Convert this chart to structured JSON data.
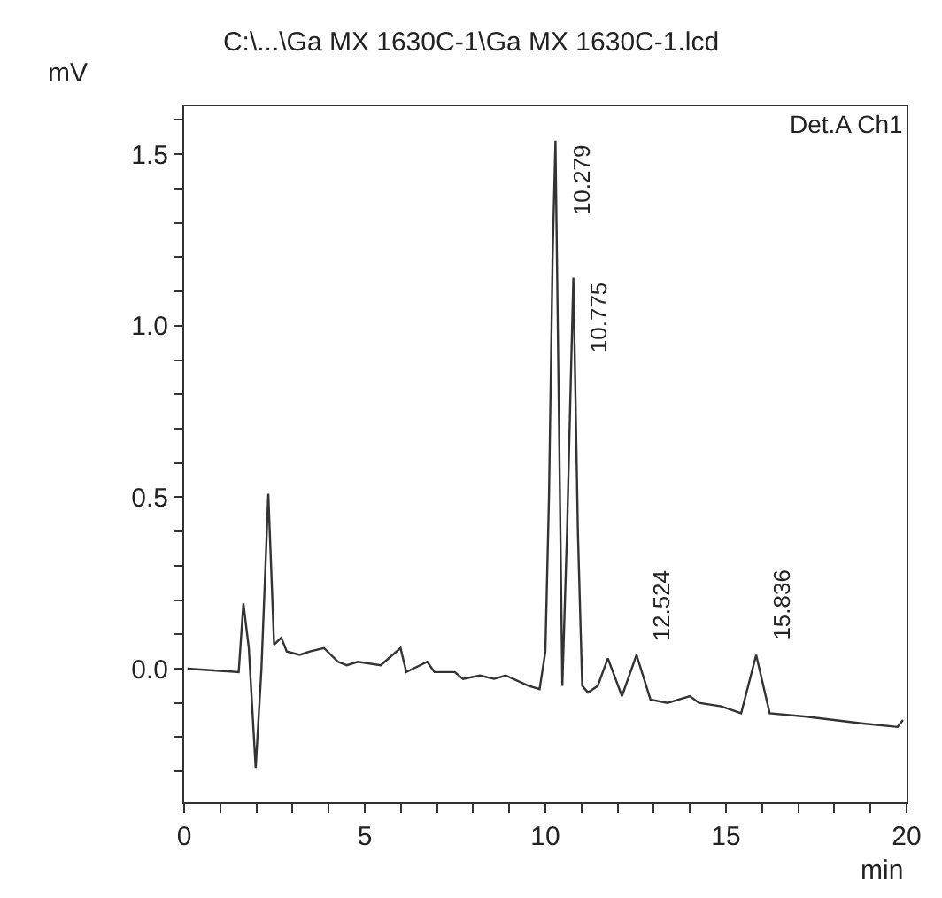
{
  "chart_data": {
    "type": "line",
    "title": "C:\\...\\Ga MX 1630C-1\\Ga MX 1630C-1.lcd",
    "xlabel": "min",
    "ylabel": "mV",
    "annotations": [
      "Det.A Ch1",
      {
        "text": "10.279",
        "x": 10.279,
        "y": 1.54
      },
      {
        "text": "10.775",
        "x": 10.775,
        "y": 1.14
      },
      {
        "text": "12.524",
        "x": 12.524,
        "y": 0.04
      },
      {
        "text": "15.836",
        "x": 15.836,
        "y": 0.04
      }
    ],
    "series": [
      {
        "color": "#333333",
        "x": [
          0.09,
          1.51,
          1.64,
          1.79,
          1.98,
          2.14,
          2.33,
          2.49,
          2.69,
          2.84,
          3.2,
          3.48,
          3.87,
          4.26,
          4.5,
          4.81,
          5.44,
          5.99,
          6.15,
          6.73,
          6.93,
          7.49,
          7.72,
          8.19,
          8.58,
          8.9,
          9.53,
          9.84,
          10.0,
          10.1,
          10.2,
          10.279,
          10.38,
          10.47,
          10.6,
          10.775,
          10.9,
          11.02,
          11.18,
          11.45,
          11.73,
          12.12,
          12.524,
          12.91,
          13.38,
          14.0,
          14.25,
          14.87,
          15.42,
          15.836,
          16.21,
          17.23,
          18.8,
          19.75,
          19.9
        ],
        "values": [
          0.0,
          -0.01,
          0.19,
          0.06,
          -0.29,
          0.0,
          0.51,
          0.07,
          0.09,
          0.05,
          0.04,
          0.05,
          0.06,
          0.02,
          0.01,
          0.02,
          0.01,
          0.06,
          -0.01,
          0.02,
          -0.01,
          -0.01,
          -0.03,
          -0.02,
          -0.03,
          -0.02,
          -0.05,
          -0.06,
          0.05,
          0.5,
          1.2,
          1.54,
          0.7,
          -0.05,
          0.4,
          1.14,
          0.4,
          -0.05,
          -0.07,
          -0.05,
          0.03,
          -0.08,
          0.04,
          -0.09,
          -0.1,
          -0.08,
          -0.1,
          -0.11,
          -0.13,
          0.04,
          -0.13,
          -0.14,
          -0.16,
          -0.17,
          -0.15
        ]
      }
    ],
    "xlim": [
      0,
      20
    ],
    "ylim": [
      -0.39,
      1.64
    ],
    "xticks": [
      0,
      {
        "value": 1,
        "label": null
      },
      {
        "value": 2,
        "label": null
      },
      {
        "value": 3,
        "label": null
      },
      {
        "value": 4,
        "label": null
      },
      5,
      {
        "value": 6,
        "label": null
      },
      {
        "value": 7,
        "label": null
      },
      {
        "value": 8,
        "label": null
      },
      {
        "value": 9,
        "label": null
      },
      10,
      {
        "value": 11,
        "label": null
      },
      {
        "value": 12,
        "label": null
      },
      {
        "value": 13,
        "label": null
      },
      {
        "value": 14,
        "label": null
      },
      15,
      {
        "value": 16,
        "label": null
      },
      {
        "value": 17,
        "label": null
      },
      {
        "value": 18,
        "label": null
      },
      {
        "value": 19,
        "label": null
      },
      20
    ],
    "yticks": [
      {
        "value": -0.3,
        "label": null
      },
      {
        "value": -0.2,
        "label": null
      },
      {
        "value": -0.1,
        "label": null
      },
      {
        "value": 0,
        "label": "0.0"
      },
      {
        "value": 0.1,
        "label": null
      },
      {
        "value": 0.2,
        "label": null
      },
      {
        "value": 0.3,
        "label": null
      },
      {
        "value": 0.4,
        "label": null
      },
      0.5,
      {
        "value": 0.6,
        "label": null
      },
      {
        "value": 0.7,
        "label": null
      },
      {
        "value": 0.8,
        "label": null
      },
      {
        "value": 0.9,
        "label": null
      },
      {
        "value": 1,
        "label": "1.0"
      },
      {
        "value": 1.1,
        "label": null
      },
      {
        "value": 1.2,
        "label": null
      },
      {
        "value": 1.3,
        "label": null
      },
      {
        "value": 1.4,
        "label": null
      },
      1.5,
      {
        "value": 1.6,
        "label": null
      }
    ],
    "marker": "none",
    "line_style": "solid"
  }
}
